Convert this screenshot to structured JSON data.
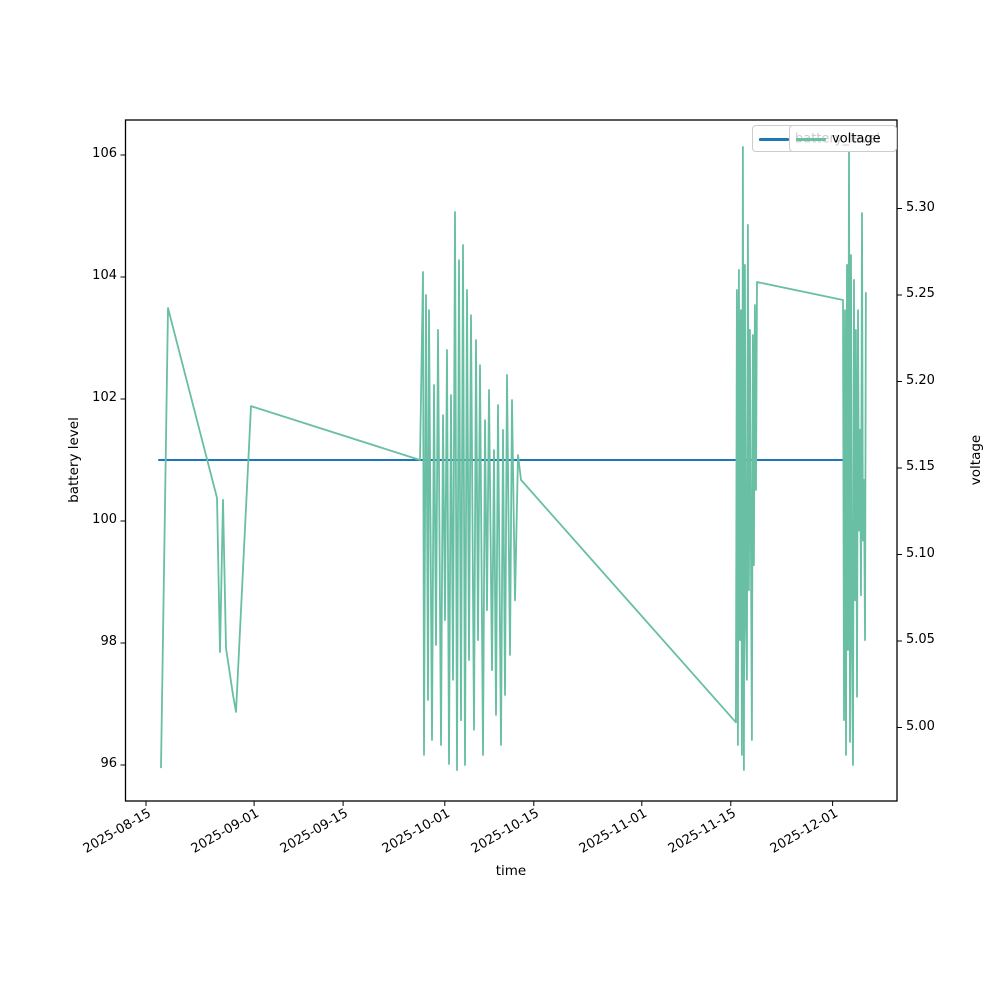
{
  "figure": {
    "background": "#ffffff"
  },
  "legend": {
    "position": "upper right",
    "entries": [
      {
        "label": "battery_level",
        "color": "#1f77b4"
      },
      {
        "label": "voltage",
        "color": "#68bfa3"
      }
    ]
  },
  "chart_data": {
    "type": "line",
    "title": "",
    "xlabel": "time",
    "ylabel_left": "battery level",
    "ylabel_right": "voltage",
    "grid": false,
    "x_start_date": "2025-08-15",
    "x_tick_labels": [
      "2025-08-15",
      "2025-09-01",
      "2025-09-15",
      "2025-10-01",
      "2025-10-15",
      "2025-11-01",
      "2025-11-15",
      "2025-12-01"
    ],
    "x_tick_day_offsets": [
      0,
      17,
      31,
      47,
      61,
      78,
      92,
      108
    ],
    "y_ticks_left": [
      "96",
      "98",
      "100",
      "102",
      "104",
      "106"
    ],
    "y_ticks_left_values": [
      96,
      98,
      100,
      102,
      104,
      106
    ],
    "y_ticks_right": [
      "5.00",
      "5.05",
      "5.10",
      "5.15",
      "5.20",
      "5.25",
      "5.30"
    ],
    "y_ticks_right_values": [
      5.0,
      5.05,
      5.1,
      5.15,
      5.2,
      5.25,
      5.3
    ],
    "ylim_left": [
      95.43,
      106.57
    ],
    "ylim_right": [
      4.9575,
      5.3512
    ],
    "series": [
      {
        "name": "battery_level",
        "axis": "left",
        "color": "#1f77b4",
        "linewidth": 2,
        "points": [
          [
            2.04,
            101
          ],
          [
            110.9,
            101
          ]
        ]
      },
      {
        "name": "voltage",
        "axis": "right",
        "color": "#68bfa3",
        "linewidth": 1.8,
        "points": [
          [
            2.36,
            4.977
          ],
          [
            3.46,
            5.2425
          ],
          [
            11.17,
            5.1327
          ],
          [
            11.64,
            5.0436
          ],
          [
            12.11,
            5.1316
          ],
          [
            12.58,
            5.046
          ],
          [
            13.69,
            5.0188
          ],
          [
            14.16,
            5.009
          ],
          [
            16.52,
            5.1858
          ],
          [
            43.1,
            5.1546
          ],
          [
            43.58,
            5.2633
          ],
          [
            43.73,
            4.9841
          ],
          [
            44.05,
            5.25
          ],
          [
            44.36,
            5.0159
          ],
          [
            44.52,
            5.2413
          ],
          [
            44.99,
            4.9928
          ],
          [
            45.31,
            5.198
          ],
          [
            45.62,
            5.0477
          ],
          [
            45.93,
            5.2298
          ],
          [
            46.41,
            4.9899
          ],
          [
            46.72,
            5.1806
          ],
          [
            47.04,
            5.0621
          ],
          [
            47.35,
            5.2182
          ],
          [
            47.66,
            4.9789
          ],
          [
            47.98,
            5.1922
          ],
          [
            48.29,
            5.0275
          ],
          [
            48.61,
            5.298
          ],
          [
            48.92,
            4.9754
          ],
          [
            49.24,
            5.2702
          ],
          [
            49.55,
            5.0042
          ],
          [
            49.86,
            5.2789
          ],
          [
            50.18,
            4.9783
          ],
          [
            50.5,
            5.2529
          ],
          [
            50.81,
            5.039
          ],
          [
            51.12,
            5.2384
          ],
          [
            51.6,
            4.9986
          ],
          [
            51.91,
            5.224
          ],
          [
            52.23,
            5.0505
          ],
          [
            52.54,
            5.2095
          ],
          [
            53.01,
            4.9841
          ],
          [
            53.33,
            5.1777
          ],
          [
            53.64,
            5.0678
          ],
          [
            53.96,
            5.1951
          ],
          [
            54.43,
            5.0332
          ],
          [
            54.74,
            5.1604
          ],
          [
            55.06,
            5.0072
          ],
          [
            55.37,
            5.1864
          ],
          [
            55.84,
            4.9899
          ],
          [
            56.16,
            5.172
          ],
          [
            56.47,
            5.0188
          ],
          [
            56.79,
            5.2038
          ],
          [
            57.26,
            5.0419
          ],
          [
            57.57,
            5.1893
          ],
          [
            58.04,
            5.0735
          ],
          [
            58.52,
            5.1575
          ],
          [
            58.99,
            5.1431
          ],
          [
            92.8,
            5.003
          ],
          [
            92.95,
            5.2529
          ],
          [
            93.11,
            4.9899
          ],
          [
            93.27,
            5.2645
          ],
          [
            93.43,
            5.0505
          ],
          [
            93.58,
            5.2413
          ],
          [
            93.74,
            4.9841
          ],
          [
            93.9,
            5.3356
          ],
          [
            94.06,
            4.9754
          ],
          [
            94.21,
            5.2674
          ],
          [
            94.37,
            5.0621
          ],
          [
            94.53,
            5.0275
          ],
          [
            94.69,
            5.2905
          ],
          [
            94.84,
            5.0793
          ],
          [
            95.0,
            5.2298
          ],
          [
            95.16,
            5.1081
          ],
          [
            95.32,
            4.9928
          ],
          [
            95.47,
            5.2269
          ],
          [
            95.63,
            5.0938
          ],
          [
            95.79,
            5.2442
          ],
          [
            95.95,
            5.1373
          ],
          [
            96.11,
            5.2575
          ],
          [
            109.64,
            5.2471
          ],
          [
            109.8,
            5.0043
          ],
          [
            109.95,
            5.2413
          ],
          [
            110.11,
            4.9841
          ],
          [
            110.27,
            5.2674
          ],
          [
            110.43,
            5.0448
          ],
          [
            110.58,
            5.335
          ],
          [
            110.74,
            4.9916
          ],
          [
            110.9,
            5.2731
          ],
          [
            111.06,
            5.0448
          ],
          [
            111.21,
            4.9783
          ],
          [
            111.37,
            5.2587
          ],
          [
            111.53,
            5.0735
          ],
          [
            111.68,
            5.2298
          ],
          [
            111.84,
            5.0177
          ],
          [
            112.0,
            5.2413
          ],
          [
            112.16,
            5.1139
          ],
          [
            112.31,
            5.172
          ],
          [
            112.47,
            5.0764
          ],
          [
            112.63,
            5.2974
          ],
          [
            112.78,
            5.1081
          ],
          [
            112.94,
            5.1431
          ],
          [
            113.1,
            5.0505
          ],
          [
            113.25,
            5.2512
          ]
        ]
      }
    ]
  }
}
